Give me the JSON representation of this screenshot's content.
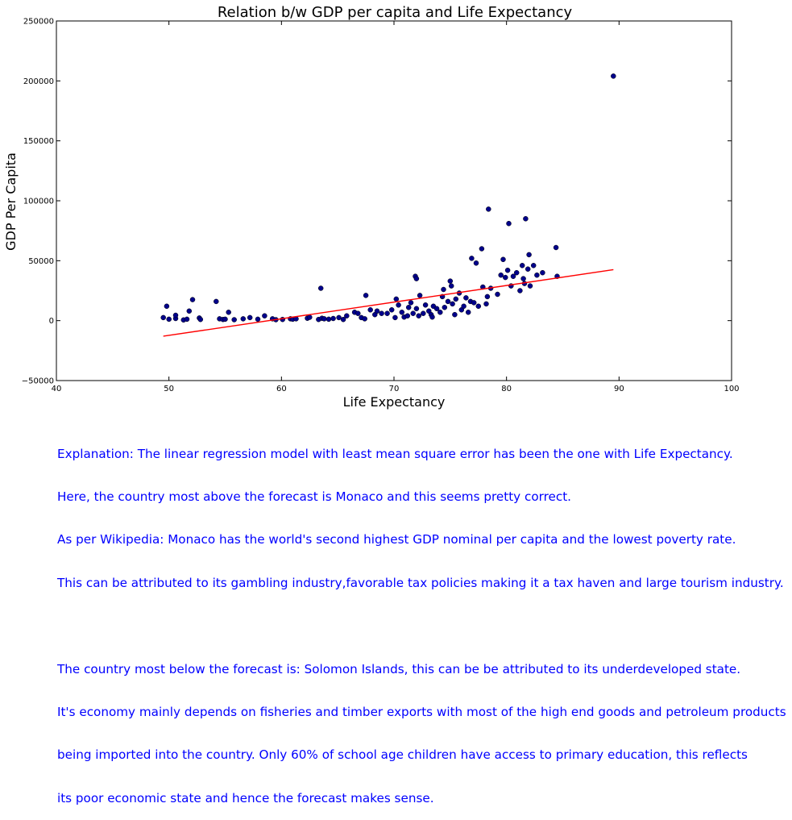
{
  "chart_data": {
    "type": "scatter",
    "title": "Relation b/w GDP per capita and Life Expectancy",
    "xlabel": "Life Expectancy",
    "ylabel": "GDP Per Capita",
    "xlim": [
      40,
      100
    ],
    "ylim": [
      -50000,
      250000
    ],
    "xticks": [
      40,
      50,
      60,
      70,
      80,
      90,
      100
    ],
    "yticks": [
      -50000,
      0,
      50000,
      100000,
      150000,
      200000,
      250000
    ],
    "grid": false,
    "legend": "none",
    "colors": {
      "points": "#00008b",
      "regression": "#ff0000"
    },
    "regression_line": {
      "x": [
        49.5,
        89.5
      ],
      "y": [
        -13000,
        42500
      ]
    },
    "series": [
      {
        "values": [
          [
            49.5,
            2500
          ],
          [
            49.8,
            12000
          ],
          [
            50.0,
            1200
          ],
          [
            50.6,
            1800
          ],
          [
            50.6,
            4500
          ],
          [
            51.3,
            600
          ],
          [
            51.6,
            1200
          ],
          [
            51.8,
            8000
          ],
          [
            52.1,
            17500
          ],
          [
            52.7,
            2200
          ],
          [
            52.8,
            1000
          ],
          [
            54.2,
            16000
          ],
          [
            54.5,
            1500
          ],
          [
            54.8,
            1000
          ],
          [
            55.0,
            1200
          ],
          [
            55.3,
            7000
          ],
          [
            55.8,
            800
          ],
          [
            56.6,
            1500
          ],
          [
            57.2,
            2500
          ],
          [
            57.9,
            1200
          ],
          [
            58.5,
            4000
          ],
          [
            59.2,
            1500
          ],
          [
            59.5,
            800
          ],
          [
            60.1,
            1000
          ],
          [
            60.8,
            1500
          ],
          [
            61.0,
            1200
          ],
          [
            61.3,
            1500
          ],
          [
            62.3,
            2000
          ],
          [
            62.5,
            2800
          ],
          [
            63.3,
            1000
          ],
          [
            63.5,
            27000
          ],
          [
            63.6,
            2000
          ],
          [
            63.8,
            1500
          ],
          [
            64.2,
            1200
          ],
          [
            64.6,
            1800
          ],
          [
            65.1,
            2500
          ],
          [
            65.5,
            1000
          ],
          [
            65.8,
            4000
          ],
          [
            66.5,
            7000
          ],
          [
            66.8,
            6000
          ],
          [
            67.1,
            2500
          ],
          [
            67.4,
            1500
          ],
          [
            67.5,
            21000
          ],
          [
            67.9,
            9000
          ],
          [
            68.3,
            5000
          ],
          [
            68.5,
            8000
          ],
          [
            68.9,
            6000
          ],
          [
            69.4,
            6000
          ],
          [
            69.8,
            9000
          ],
          [
            70.1,
            2500
          ],
          [
            70.2,
            18000
          ],
          [
            70.4,
            13000
          ],
          [
            70.7,
            7000
          ],
          [
            70.9,
            3000
          ],
          [
            71.2,
            4000
          ],
          [
            71.3,
            11000
          ],
          [
            71.5,
            15000
          ],
          [
            71.7,
            6000
          ],
          [
            71.9,
            37000
          ],
          [
            72.0,
            35000
          ],
          [
            72.0,
            10000
          ],
          [
            72.2,
            4000
          ],
          [
            72.3,
            21000
          ],
          [
            72.6,
            6000
          ],
          [
            72.8,
            13000
          ],
          [
            73.1,
            8000
          ],
          [
            73.3,
            5000
          ],
          [
            73.4,
            3000
          ],
          [
            73.5,
            12000
          ],
          [
            73.8,
            10000
          ],
          [
            74.1,
            7000
          ],
          [
            74.3,
            20000
          ],
          [
            74.4,
            26000
          ],
          [
            74.5,
            11000
          ],
          [
            74.8,
            16000
          ],
          [
            75.0,
            33000
          ],
          [
            75.1,
            29000
          ],
          [
            75.2,
            14000
          ],
          [
            75.4,
            5000
          ],
          [
            75.5,
            18000
          ],
          [
            75.8,
            23000
          ],
          [
            76.0,
            9000
          ],
          [
            76.2,
            12000
          ],
          [
            76.4,
            19000
          ],
          [
            76.6,
            7000
          ],
          [
            76.8,
            16000
          ],
          [
            76.9,
            52000
          ],
          [
            77.1,
            15000
          ],
          [
            77.3,
            48000
          ],
          [
            77.5,
            12000
          ],
          [
            77.8,
            60000
          ],
          [
            77.9,
            28000
          ],
          [
            78.2,
            14000
          ],
          [
            78.3,
            20000
          ],
          [
            78.4,
            93000
          ],
          [
            78.6,
            27000
          ],
          [
            79.2,
            22000
          ],
          [
            79.5,
            38000
          ],
          [
            79.7,
            51000
          ],
          [
            79.9,
            36000
          ],
          [
            80.1,
            42000
          ],
          [
            80.2,
            81000
          ],
          [
            80.4,
            29000
          ],
          [
            80.6,
            37000
          ],
          [
            80.9,
            40000
          ],
          [
            81.2,
            25000
          ],
          [
            81.4,
            46000
          ],
          [
            81.5,
            35000
          ],
          [
            81.6,
            31000
          ],
          [
            81.7,
            85000
          ],
          [
            81.9,
            43000
          ],
          [
            82.0,
            55000
          ],
          [
            82.1,
            29000
          ],
          [
            82.4,
            46000
          ],
          [
            82.7,
            38000
          ],
          [
            83.2,
            40000
          ],
          [
            84.4,
            61000
          ],
          [
            84.5,
            37000
          ],
          [
            89.5,
            204000
          ]
        ]
      }
    ]
  },
  "explanation": {
    "paragraph1": [
      "Explanation: The linear regression model with least mean square error has been the one with Life Expectancy.",
      "Here, the country most above the forecast is Monaco and this seems pretty correct.",
      "As per Wikipedia: Monaco has the world's second highest GDP nominal per capita and the lowest poverty rate.",
      "This can be attributed to its gambling industry,favorable tax policies making it a tax haven and large tourism industry."
    ],
    "paragraph2": [
      "The country most below the forecast is: Solomon Islands, this can be be attributed to its underdeveloped state.",
      "It's economy mainly depends on fisheries and timber exports with most of the high end goods and petroleum products",
      "being imported into the country. Only 60% of school age children have access to primary education, this reflects",
      "its poor economic state and hence the forecast makes sense."
    ]
  }
}
